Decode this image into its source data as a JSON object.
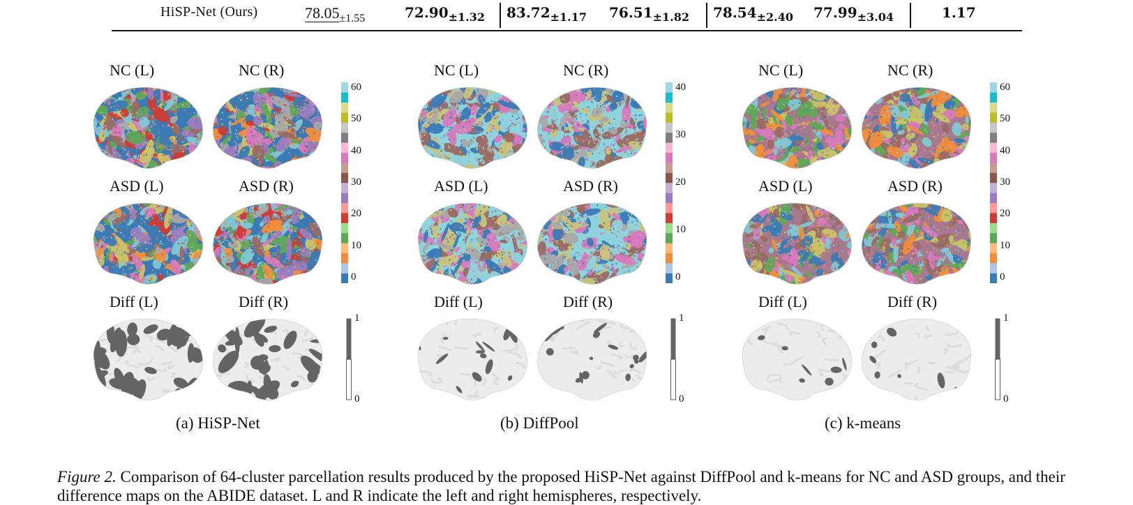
{
  "table_row": {
    "method": "HiSP-Net (Ours)",
    "cells": [
      {
        "value": "78.05",
        "pm": "±1.55",
        "bold": false,
        "underline": true
      },
      {
        "value": "72.90",
        "pm": "±1.32",
        "bold": true,
        "underline": false
      },
      {
        "value": "83.72",
        "pm": "±1.17",
        "bold": true,
        "underline": false
      },
      {
        "value": "76.51",
        "pm": "±1.82",
        "bold": true,
        "underline": false
      },
      {
        "value": "78.54",
        "pm": "±2.40",
        "bold": true,
        "underline": false
      },
      {
        "value": "77.99",
        "pm": "±3.04",
        "bold": true,
        "underline": false
      },
      {
        "value": "1.17",
        "pm": "",
        "bold": true,
        "underline": false
      }
    ]
  },
  "panels": [
    {
      "id": "a",
      "caption": "(a) HiSP-Net",
      "row_labels": [
        "NC (L)",
        "NC (R)",
        "ASD (L)",
        "ASD (R)",
        "Diff (L)",
        "Diff (R)"
      ],
      "colorbar_ticks": [
        "60",
        "50",
        "40",
        "30",
        "20",
        "10",
        "0"
      ],
      "diff_ticks": [
        "1",
        "0"
      ],
      "palette": [
        "#3a7bb6",
        "#f28e3b",
        "#5ea957",
        "#d03b33",
        "#9b7dbf",
        "#9a6b62",
        "#d879bf",
        "#a9a9a9",
        "#c9c466",
        "#7ec8d6"
      ]
    },
    {
      "id": "b",
      "caption": "(b) DiffPool",
      "row_labels": [
        "NC (L)",
        "NC (R)",
        "ASD (L)",
        "ASD (R)",
        "Diff (L)",
        "Diff (R)"
      ],
      "colorbar_ticks": [
        "40",
        "30",
        "20",
        "10",
        "0"
      ],
      "diff_ticks": [
        "1",
        "0"
      ],
      "palette": [
        "#8dd4dd",
        "#c9c47a",
        "#3a7bb6",
        "#9a6b62",
        "#d879bf",
        "#a9a9a9"
      ]
    },
    {
      "id": "c",
      "caption": "(c) k-means",
      "row_labels": [
        "NC (L)",
        "NC (R)",
        "ASD (L)",
        "ASD (R)",
        "Diff (L)",
        "Diff (R)"
      ],
      "colorbar_ticks": [
        "60",
        "50",
        "40",
        "30",
        "20",
        "10",
        "0"
      ],
      "diff_ticks": [
        "1",
        "0"
      ],
      "palette": [
        "#a8788f",
        "#d879bf",
        "#9a6b62",
        "#5ea957",
        "#7ec8d6",
        "#f28e3b",
        "#c9c466",
        "#3a7bb6"
      ]
    }
  ],
  "colorbar_colors": [
    "#3a7bb6",
    "#aec7e8",
    "#f28e3b",
    "#ffbb78",
    "#5ea957",
    "#98df8a",
    "#d03b33",
    "#ff9896",
    "#9b7dbf",
    "#c5b0d5",
    "#8c564b",
    "#c49c94",
    "#d879bf",
    "#f7b6d2",
    "#7f7f7f",
    "#c7c7c7",
    "#bcbd22",
    "#dbdb8d",
    "#17becf",
    "#9edae5"
  ],
  "caption": {
    "figure_label": "Figure 2.",
    "text": "Comparison of 64-cluster parcellation results produced by the proposed HiSP-Net against DiffPool and k-means for NC and ASD groups, and their difference maps on the ABIDE dataset. L and R indicate the left and right hemispheres, respectively."
  }
}
